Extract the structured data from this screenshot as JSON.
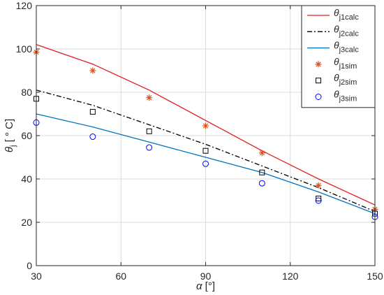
{
  "chart_data": {
    "type": "line",
    "xlabel": {
      "symbol": "α",
      "unit": " [°]"
    },
    "ylabel": {
      "symbol": "θ",
      "subscript": "j",
      "unit": " [ ° C]"
    },
    "xlim": [
      30,
      150
    ],
    "ylim": [
      0,
      120
    ],
    "xticks": [
      30,
      60,
      90,
      120,
      150
    ],
    "yticks": [
      0,
      20,
      40,
      60,
      80,
      100,
      120
    ],
    "grid": true,
    "legend_position": "top-right",
    "series": [
      {
        "name": "θj1calc",
        "base": "θ",
        "sub": "j1calc",
        "kind": "line",
        "style": "solid",
        "color": "#e31a1c",
        "x": [
          30,
          50,
          70,
          90,
          110,
          130,
          150
        ],
        "y": [
          102,
          93,
          81,
          67,
          53,
          40,
          28
        ]
      },
      {
        "name": "θj2calc",
        "base": "θ",
        "sub": "j2calc",
        "kind": "line",
        "style": "dashdot",
        "color": "#000000",
        "x": [
          30,
          50,
          70,
          90,
          110,
          130,
          150
        ],
        "y": [
          81,
          74,
          65,
          56,
          46,
          36,
          25
        ]
      },
      {
        "name": "θj3calc",
        "base": "θ",
        "sub": "j3calc",
        "kind": "line",
        "style": "solid",
        "color": "#0072bd",
        "x": [
          30,
          50,
          70,
          90,
          110,
          130,
          150
        ],
        "y": [
          70,
          64,
          57,
          50,
          43,
          34,
          24
        ]
      },
      {
        "name": "θj1sim",
        "base": "θ",
        "sub": "j1sim",
        "kind": "marker",
        "marker": "asterisk",
        "color": "#d95319",
        "x": [
          30,
          50,
          70,
          90,
          110,
          130,
          150
        ],
        "y": [
          98.5,
          90,
          77.5,
          64.5,
          52,
          37,
          26
        ]
      },
      {
        "name": "θj2sim",
        "base": "θ",
        "sub": "j2sim",
        "kind": "marker",
        "marker": "square",
        "color": "#000000",
        "x": [
          30,
          50,
          70,
          90,
          110,
          130,
          150
        ],
        "y": [
          77,
          71,
          62,
          53,
          43,
          31,
          24
        ]
      },
      {
        "name": "θj3sim",
        "base": "θ",
        "sub": "j3sim",
        "kind": "marker",
        "marker": "circle",
        "color": "#0000ff",
        "x": [
          30,
          50,
          70,
          90,
          110,
          130,
          150
        ],
        "y": [
          66,
          59.5,
          54.5,
          47,
          38,
          30,
          22.5
        ]
      }
    ]
  }
}
